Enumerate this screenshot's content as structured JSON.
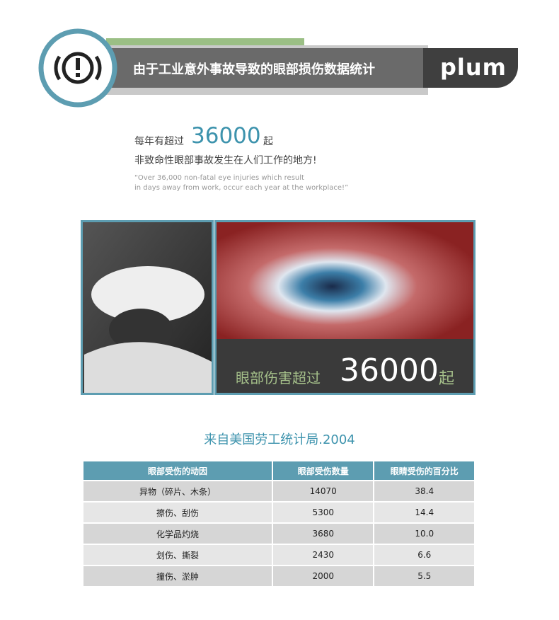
{
  "header": {
    "title": "由于工业意外事故导致的眼部损伤数据统计",
    "logo": "plum"
  },
  "intro": {
    "prefix": "每年有超过",
    "number": "36000",
    "suffix": "起",
    "line2": "非致命性眼部事故发生在人们工作的地方!",
    "quote": [
      "“Over 36,000 non-fatal eye injuries which result",
      "in days away from work, occur each year at the workplace!”"
    ]
  },
  "caption": {
    "prefix": "眼部伤害超过",
    "number": "36000",
    "suffix": "起"
  },
  "table": {
    "title": "来自美国劳工统计局.2004",
    "columns": [
      "眼部受伤的动因",
      "眼部受伤数量",
      "眼睛受伤的百分比"
    ],
    "rows": [
      [
        "异物（碎片、木条）",
        "14070",
        "38.4"
      ],
      [
        "擦伤、刮伤",
        "5300",
        "14.4"
      ],
      [
        "化学品灼烧",
        "3680",
        "10.0"
      ],
      [
        "划伤、撕裂",
        "2430",
        "6.6"
      ],
      [
        "撞伤、淤肿",
        "2000",
        "5.5"
      ]
    ]
  }
}
